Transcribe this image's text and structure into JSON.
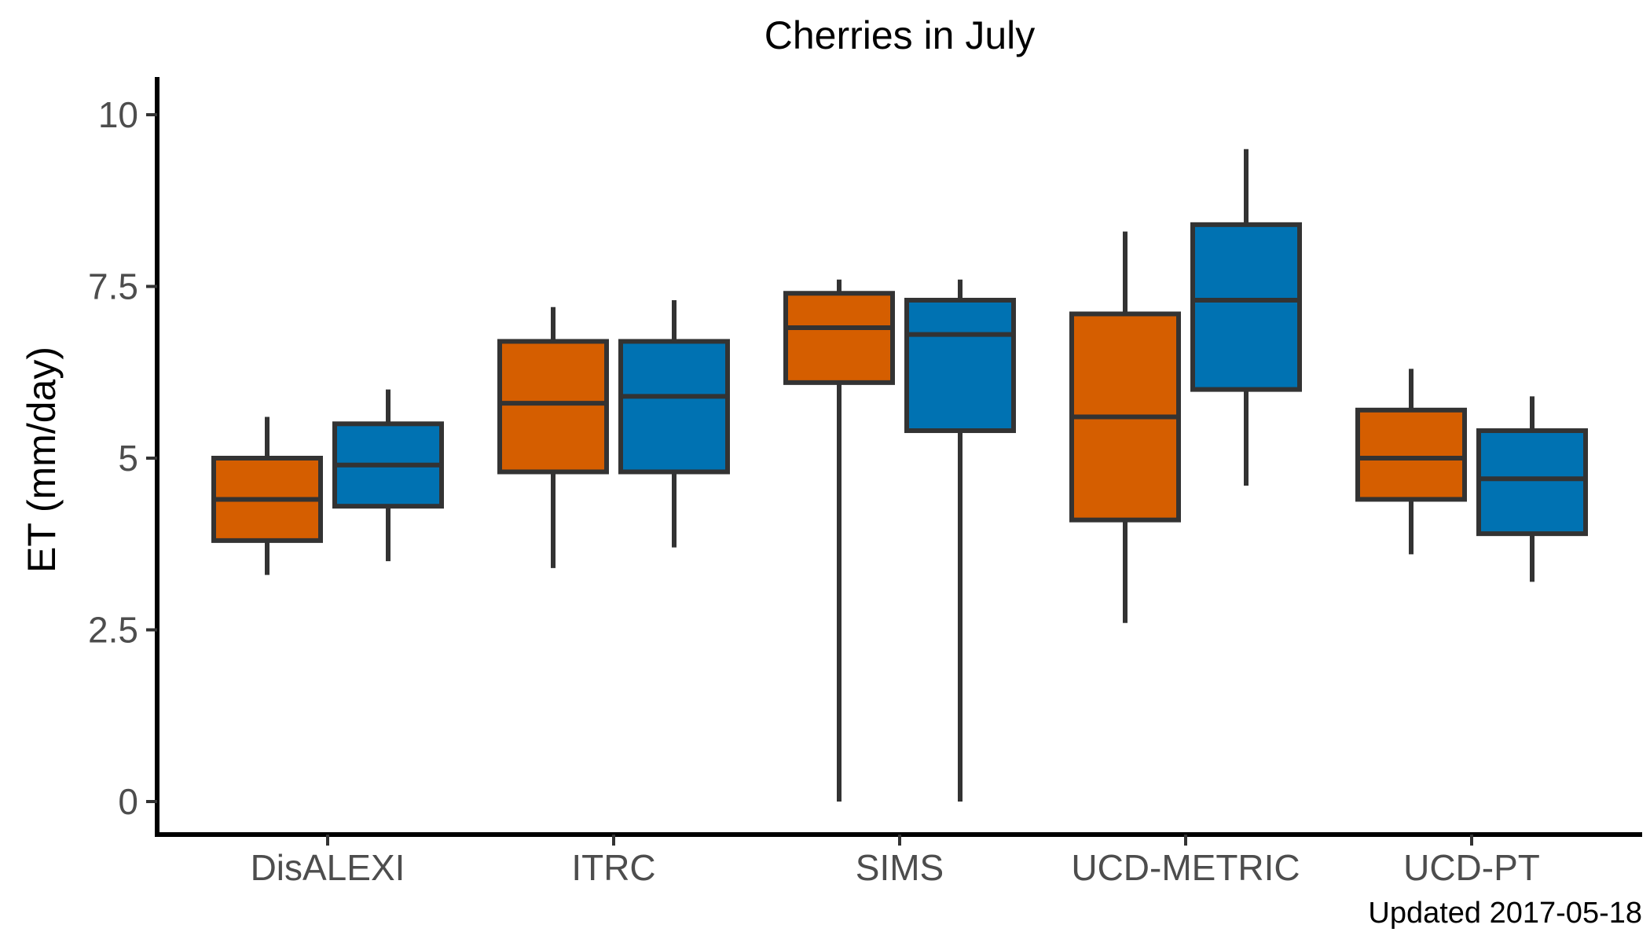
{
  "chart_data": {
    "type": "boxplot",
    "title": "Cherries in July",
    "ylabel": "ET (mm/day)",
    "xlabel": "",
    "ylim": [
      -0.5,
      10.5
    ],
    "yticks": [
      0,
      2.5,
      5,
      7.5,
      10
    ],
    "ytick_labels": [
      "0",
      "2.5",
      "5",
      "7.5",
      "10"
    ],
    "categories": [
      "DisALEXI",
      "ITRC",
      "SIMS",
      "UCD-METRIC",
      "UCD-PT"
    ],
    "grid": false,
    "legend": "none",
    "series": [
      {
        "color": "#D55E00",
        "boxes": [
          {
            "min": 3.3,
            "q1": 3.8,
            "median": 4.4,
            "q3": 5.0,
            "max": 5.6
          },
          {
            "min": 3.4,
            "q1": 4.8,
            "median": 5.8,
            "q3": 6.7,
            "max": 7.2
          },
          {
            "min": 0.0,
            "q1": 6.1,
            "median": 6.9,
            "q3": 7.4,
            "max": 7.6
          },
          {
            "min": 2.6,
            "q1": 4.1,
            "median": 5.6,
            "q3": 7.1,
            "max": 8.3
          },
          {
            "min": 3.6,
            "q1": 4.4,
            "median": 5.0,
            "q3": 5.7,
            "max": 6.3
          }
        ]
      },
      {
        "color": "#0072B2",
        "boxes": [
          {
            "min": 3.5,
            "q1": 4.3,
            "median": 4.9,
            "q3": 5.5,
            "max": 6.0
          },
          {
            "min": 3.7,
            "q1": 4.8,
            "median": 5.9,
            "q3": 6.7,
            "max": 7.3
          },
          {
            "min": 0.0,
            "q1": 5.4,
            "median": 6.8,
            "q3": 7.3,
            "max": 7.6
          },
          {
            "min": 4.6,
            "q1": 6.0,
            "median": 7.3,
            "q3": 8.4,
            "max": 9.5
          },
          {
            "min": 3.2,
            "q1": 3.9,
            "median": 4.7,
            "q3": 5.4,
            "max": 5.9
          }
        ]
      }
    ]
  },
  "caption": "Updated  2017-05-18"
}
